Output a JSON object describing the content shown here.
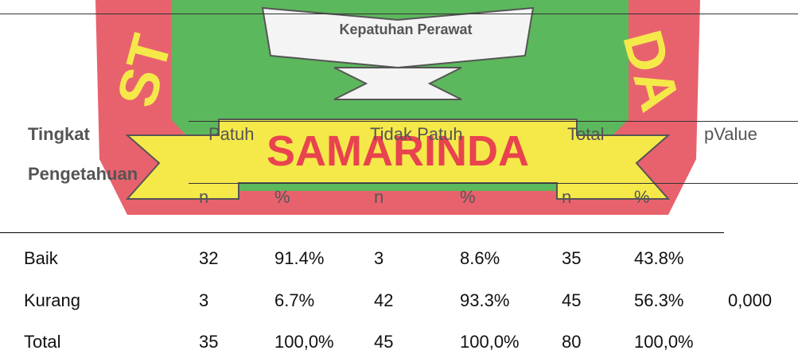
{
  "logo": {
    "left": "ST",
    "right": "DA",
    "banner": "SAMARINDA"
  },
  "table": {
    "title": "Kepatuhan Perawat",
    "row_header": [
      "Tingkat",
      "Pengetahuan"
    ],
    "groups": [
      "Patuh",
      "Tidak Patuh",
      "Total"
    ],
    "pvalue_header": "pValue",
    "subheaders": [
      "n",
      "%",
      "n",
      "%",
      "n",
      "%"
    ],
    "rows": [
      [
        "Baik",
        "32",
        "91.4%",
        "3",
        "8.6%",
        "35",
        "43.8%"
      ],
      [
        "Kurang",
        "3",
        "6.7%",
        "42",
        "93.3%",
        "45",
        "56.3%"
      ],
      [
        "Total",
        "35",
        "100,0%",
        "45",
        "100,0%",
        "80",
        "100,0%"
      ]
    ],
    "pvalue": "0,000"
  }
}
